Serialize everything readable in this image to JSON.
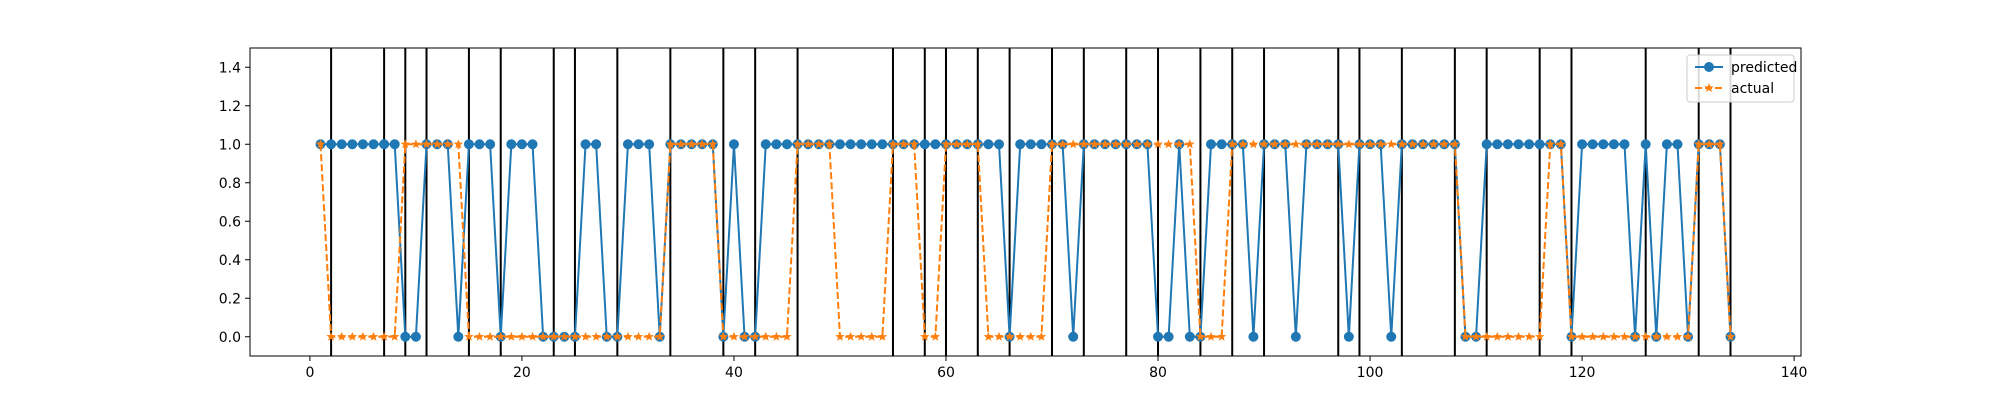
{
  "chart_data": {
    "type": "line",
    "title": "",
    "xlabel": "",
    "ylabel": "",
    "xlim": [
      -5.65,
      140.65
    ],
    "ylim": [
      -0.1,
      1.5
    ],
    "x_ticks": [
      0,
      20,
      40,
      60,
      80,
      100,
      120,
      140
    ],
    "x_tick_labels": [
      "0",
      "20",
      "40",
      "60",
      "80",
      "100",
      "120",
      "140"
    ],
    "y_ticks": [
      0.0,
      0.2,
      0.4,
      0.6,
      0.8,
      1.0,
      1.2,
      1.4
    ],
    "y_tick_labels": [
      "0.0",
      "0.2",
      "0.4",
      "0.6",
      "0.8",
      "1.0",
      "1.2",
      "1.4"
    ],
    "grid": false,
    "legend_position": "top-right",
    "x": [
      1,
      2,
      3,
      4,
      5,
      6,
      7,
      8,
      9,
      10,
      11,
      12,
      13,
      14,
      15,
      16,
      17,
      18,
      19,
      20,
      21,
      22,
      23,
      24,
      25,
      26,
      27,
      28,
      29,
      30,
      31,
      32,
      33,
      34,
      35,
      36,
      37,
      38,
      39,
      40,
      41,
      42,
      43,
      44,
      45,
      46,
      47,
      48,
      49,
      50,
      51,
      52,
      53,
      54,
      55,
      56,
      57,
      58,
      59,
      60,
      61,
      62,
      63,
      64,
      65,
      66,
      67,
      68,
      69,
      70,
      71,
      72,
      73,
      74,
      75,
      76,
      77,
      78,
      79,
      80,
      81,
      82,
      83,
      84,
      85,
      86,
      87,
      88,
      89,
      90,
      91,
      92,
      93,
      94,
      95,
      96,
      97,
      98,
      99,
      100,
      101,
      102,
      103,
      104,
      105,
      106,
      107,
      108,
      109,
      110,
      111,
      112,
      113,
      114,
      115,
      116,
      117,
      118,
      119,
      120,
      121,
      122,
      123,
      124,
      125,
      126,
      127,
      128,
      129,
      130,
      131,
      132,
      133,
      134
    ],
    "series": [
      {
        "name": "predicted",
        "color": "#1f77b4",
        "marker": "circle",
        "line_style": "solid",
        "values": [
          1,
          1,
          1,
          1,
          1,
          1,
          1,
          1,
          0,
          0,
          1,
          1,
          1,
          0,
          1,
          1,
          1,
          0,
          1,
          1,
          1,
          0,
          0,
          0,
          0,
          1,
          1,
          0,
          0,
          1,
          1,
          1,
          0,
          1,
          1,
          1,
          1,
          1,
          0,
          1,
          0,
          0,
          1,
          1,
          1,
          1,
          1,
          1,
          1,
          1,
          1,
          1,
          1,
          1,
          1,
          1,
          1,
          1,
          1,
          1,
          1,
          1,
          1,
          1,
          1,
          0,
          1,
          1,
          1,
          1,
          1,
          0,
          1,
          1,
          1,
          1,
          1,
          1,
          1,
          0,
          0,
          1,
          0,
          0,
          1,
          1,
          1,
          1,
          0,
          1,
          1,
          1,
          0,
          1,
          1,
          1,
          1,
          0,
          1,
          1,
          1,
          0,
          1,
          1,
          1,
          1,
          1,
          1,
          0,
          0,
          1,
          1,
          1,
          1,
          1,
          1,
          1,
          1,
          0,
          1,
          1,
          1,
          1,
          1,
          0,
          1,
          0,
          1,
          1,
          0,
          1,
          1,
          1,
          0
        ]
      },
      {
        "name": "actual",
        "color": "#ff7f0e",
        "marker": "star",
        "line_style": "dashed",
        "values": [
          1,
          0,
          0,
          0,
          0,
          0,
          0,
          0,
          1,
          1,
          1,
          1,
          1,
          1,
          0,
          0,
          0,
          0,
          0,
          0,
          0,
          0,
          0,
          0,
          0,
          0,
          0,
          0,
          0,
          0,
          0,
          0,
          0,
          1,
          1,
          1,
          1,
          1,
          0,
          0,
          0,
          0,
          0,
          0,
          0,
          1,
          1,
          1,
          1,
          0,
          0,
          0,
          0,
          0,
          1,
          1,
          1,
          0,
          0,
          1,
          1,
          1,
          1,
          0,
          0,
          0,
          0,
          0,
          0,
          1,
          1,
          1,
          1,
          1,
          1,
          1,
          1,
          1,
          1,
          1,
          1,
          1,
          1,
          0,
          0,
          0,
          1,
          1,
          1,
          1,
          1,
          1,
          1,
          1,
          1,
          1,
          1,
          1,
          1,
          1,
          1,
          1,
          1,
          1,
          1,
          1,
          1,
          1,
          0,
          0,
          0,
          0,
          0,
          0,
          0,
          0,
          1,
          1,
          0,
          0,
          0,
          0,
          0,
          0,
          0,
          0,
          0,
          0,
          0,
          0,
          1,
          1,
          1,
          0
        ]
      }
    ],
    "vertical_lines_x": [
      2,
      7,
      9,
      11,
      15,
      18,
      23,
      25,
      29,
      34,
      39,
      42,
      46,
      55,
      58,
      60,
      63,
      66,
      70,
      73,
      77,
      80,
      84,
      87,
      90,
      97,
      99,
      103,
      108,
      111,
      116,
      119,
      126,
      131,
      134
    ]
  }
}
